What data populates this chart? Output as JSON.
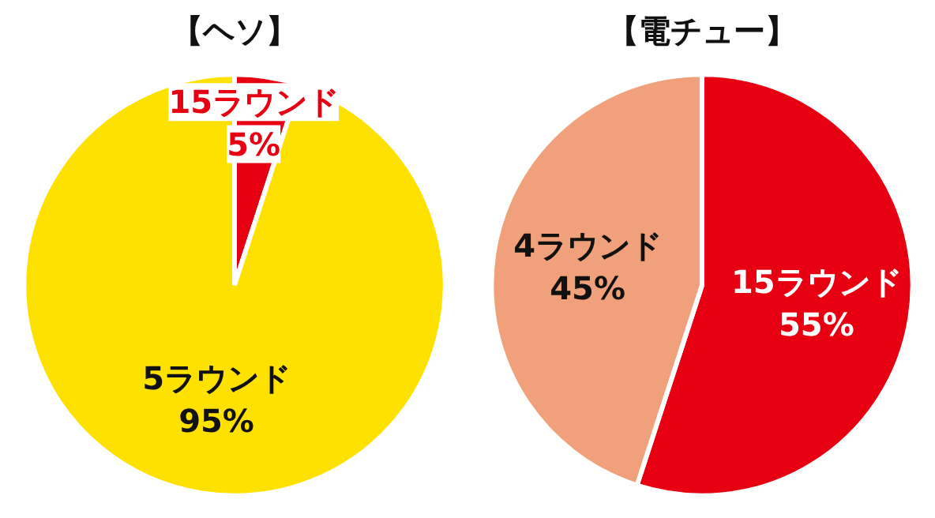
{
  "chart_data": [
    {
      "type": "pie",
      "title": "【ヘソ】",
      "categories": [
        "15ラウンド",
        "5ラウンド"
      ],
      "values": [
        5,
        95
      ],
      "colors": [
        "#e60012",
        "#ffe100"
      ],
      "value_labels": [
        "5%",
        "95%"
      ]
    },
    {
      "type": "pie",
      "title": "【電チュー】",
      "categories": [
        "15ラウンド",
        "4ラウンド"
      ],
      "values": [
        55,
        45
      ],
      "colors": [
        "#e60012",
        "#f0a07a"
      ],
      "value_labels": [
        "55%",
        "45%"
      ]
    }
  ]
}
